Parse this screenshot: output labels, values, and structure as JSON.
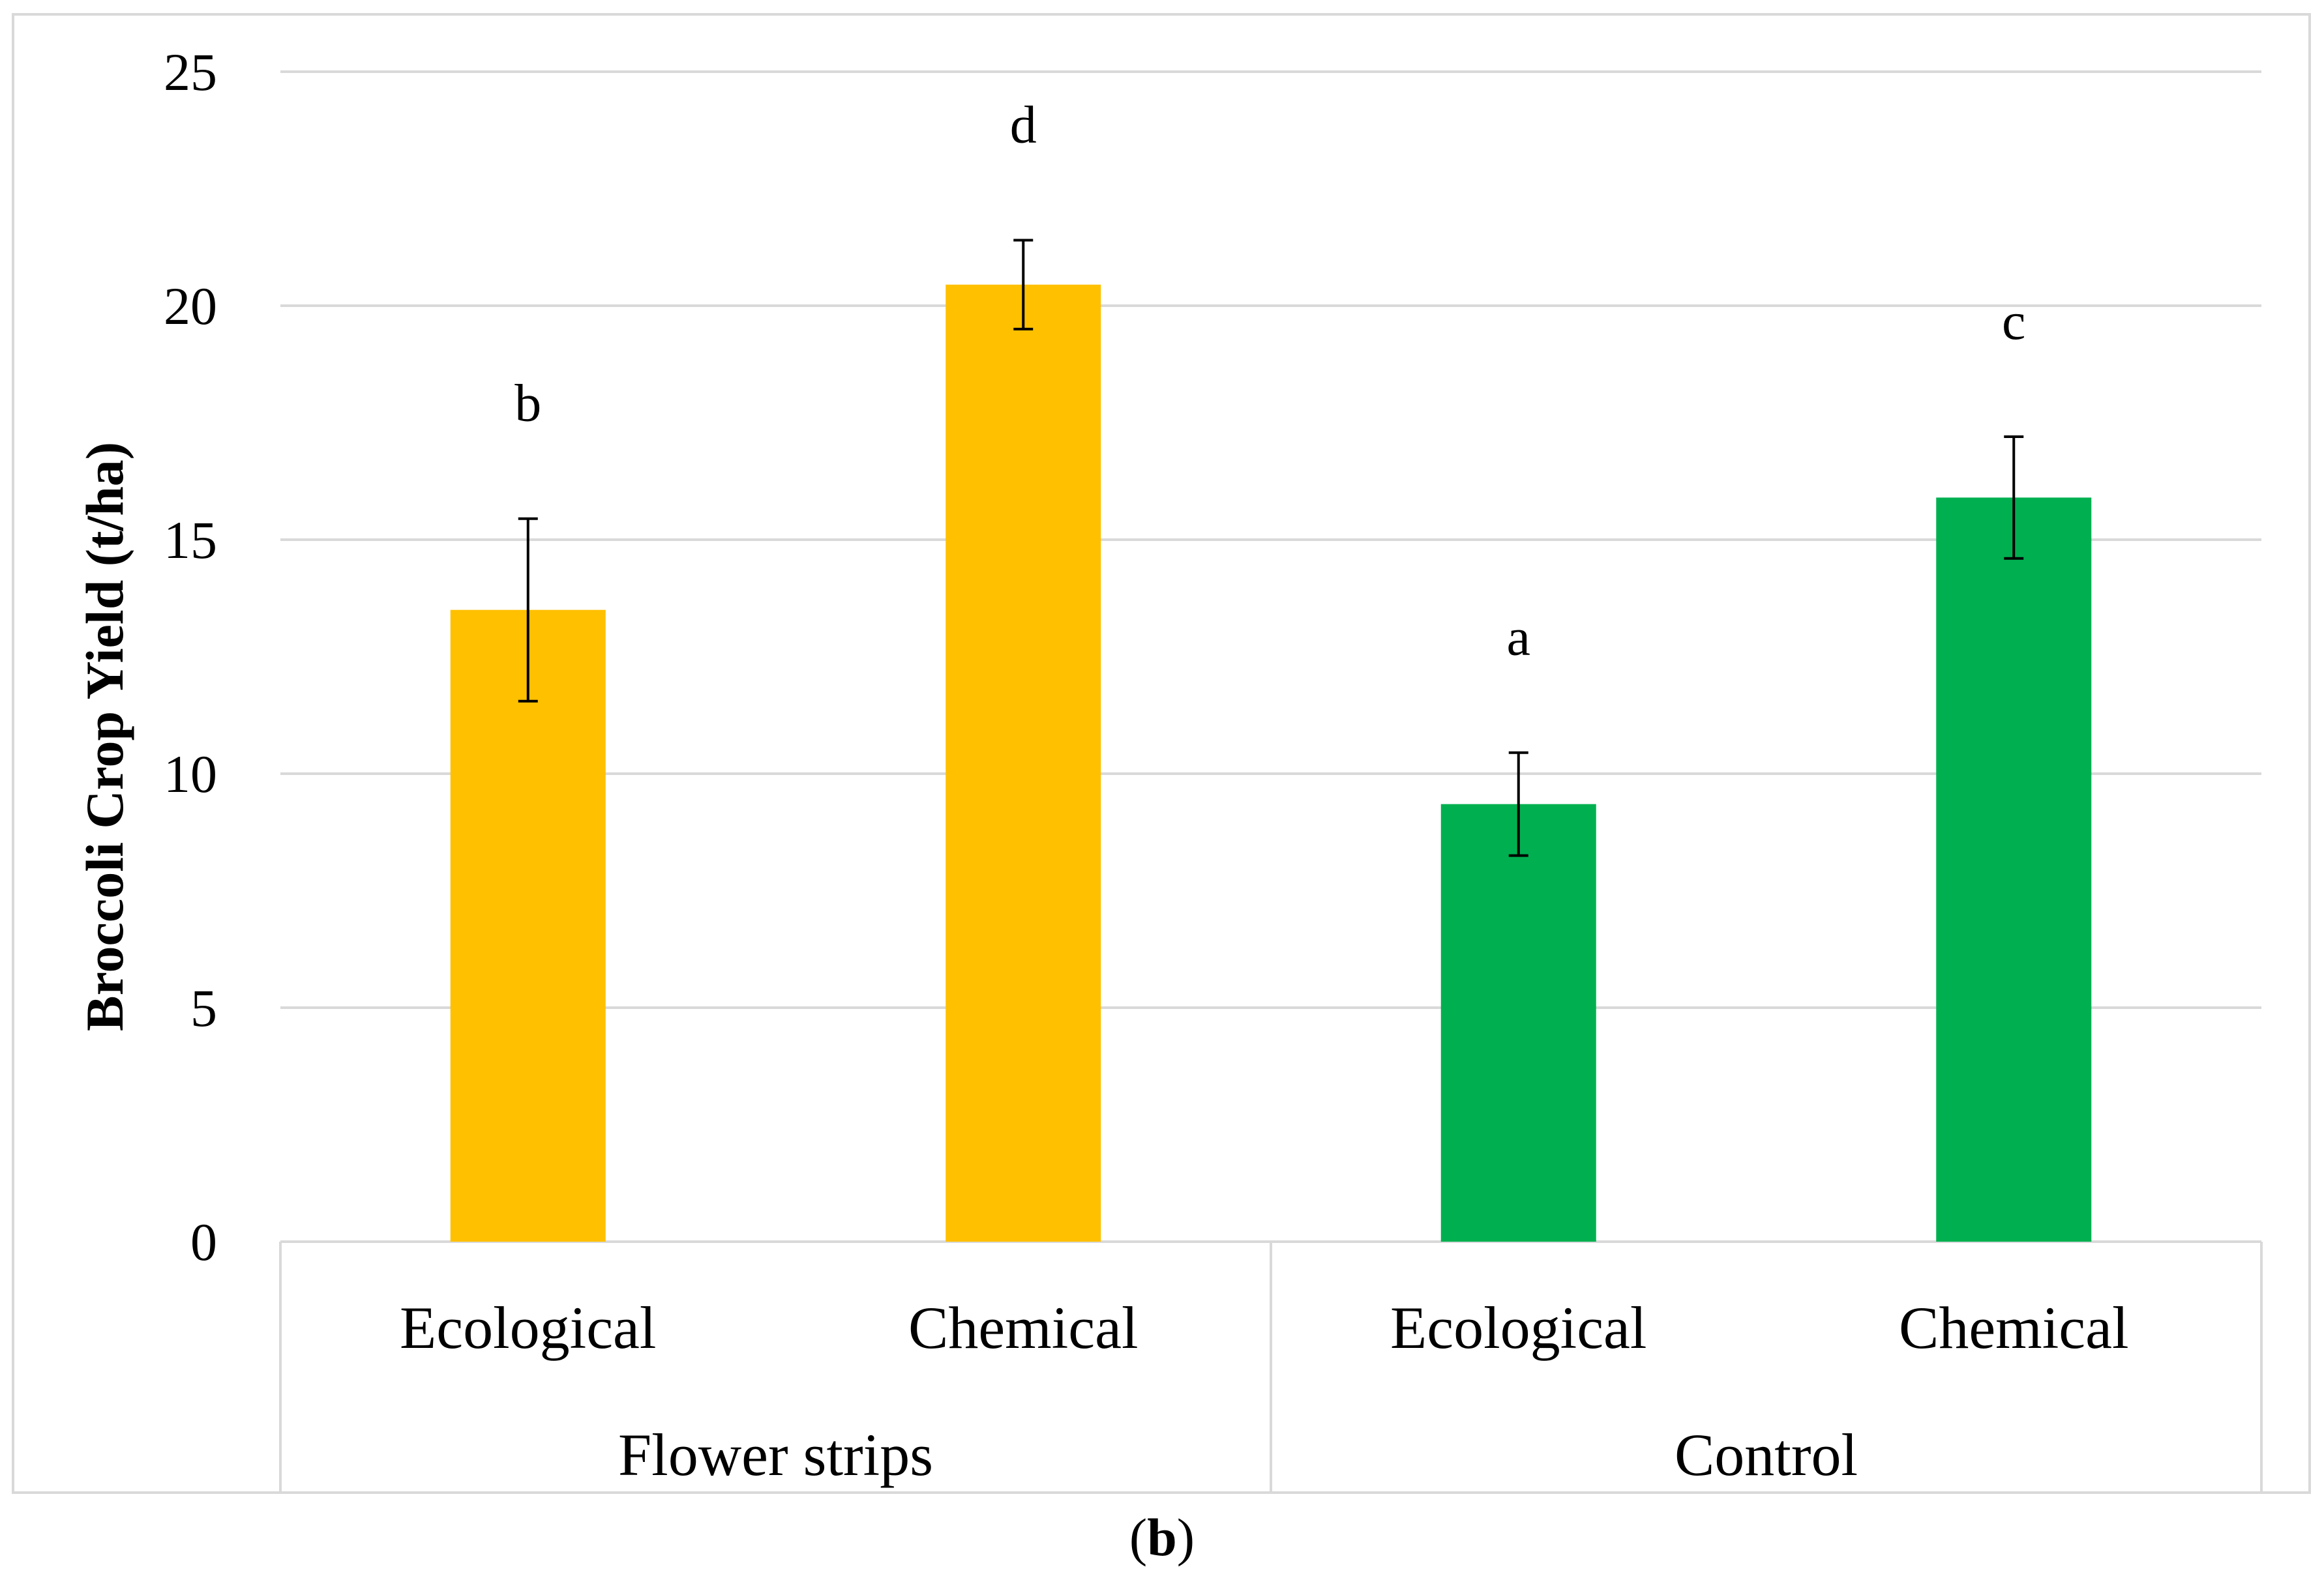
{
  "chart_data": {
    "type": "bar",
    "title": "",
    "ylabel": "Broccoli Crop Yield (t/ha)",
    "xlabel": "",
    "ylim": [
      0,
      25
    ],
    "yticks": [
      0,
      5,
      10,
      15,
      20,
      25
    ],
    "grid": true,
    "groups": [
      {
        "name": "Flower strips",
        "color": "#FFC000",
        "bars": [
          {
            "category": "Ecological",
            "value": 13.5,
            "error": 1.95,
            "letter": "b"
          },
          {
            "category": "Chemical",
            "value": 20.45,
            "error": 0.95,
            "letter": "d"
          }
        ]
      },
      {
        "name": "Control",
        "color": "#00B050",
        "bars": [
          {
            "category": "Ecological",
            "value": 9.35,
            "error": 1.1,
            "letter": "a"
          },
          {
            "category": "Chemical",
            "value": 15.9,
            "error": 1.3,
            "letter": "c"
          }
        ]
      }
    ]
  },
  "caption": {
    "open": "(",
    "label": "b",
    "close": ")"
  }
}
